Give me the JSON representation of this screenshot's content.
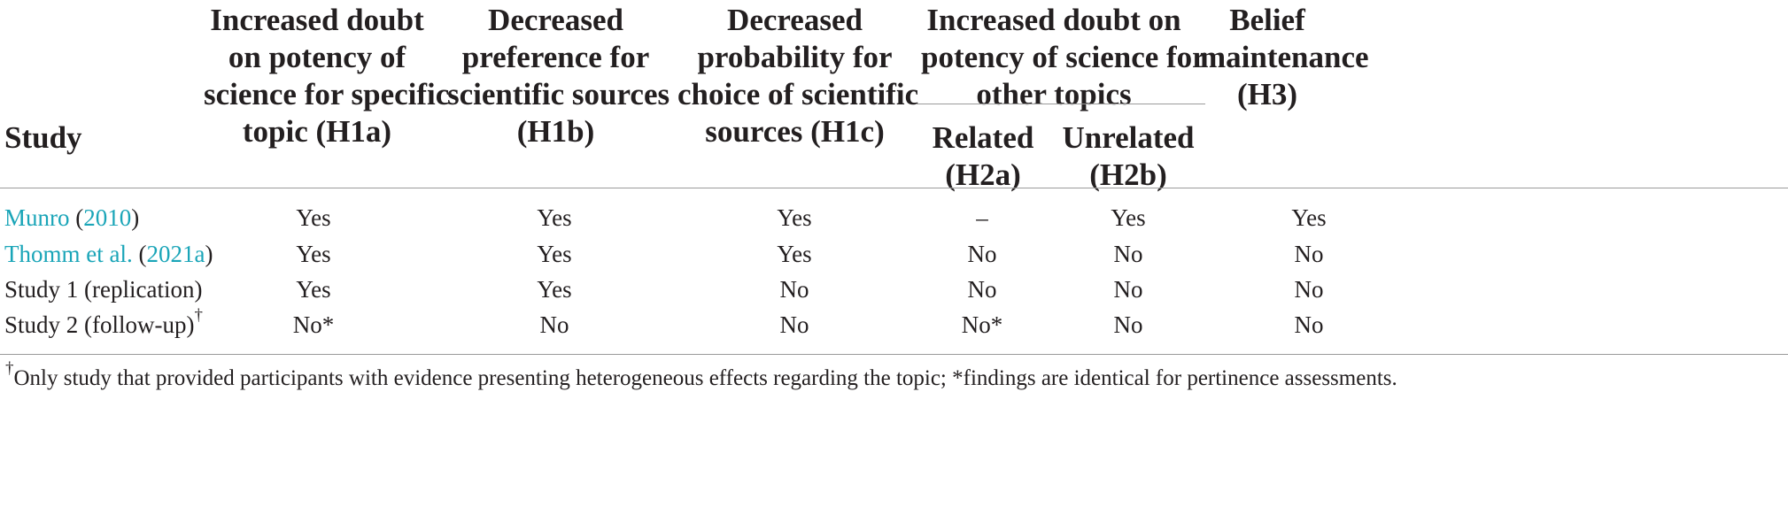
{
  "table": {
    "headers": {
      "study": "Study",
      "h1a": [
        "Increased doubt",
        "on potency of",
        "science for specific",
        "topic (H1a)"
      ],
      "h1b": [
        "Decreased",
        "preference for",
        "scientific sources",
        "(H1b)"
      ],
      "h1c": [
        "Decreased",
        "probability for",
        "choice of scientific",
        "sources (H1c)"
      ],
      "h2_group": [
        "Increased doubt on",
        "potency of science for",
        "other topics"
      ],
      "h2a": [
        "Related",
        "(H2a)"
      ],
      "h2b": [
        "Unrelated",
        "(H2b)"
      ],
      "h3": [
        "Belief",
        "maintenance",
        "(H3)"
      ]
    },
    "rows": [
      {
        "study_author": "Munro",
        "study_open": " (",
        "study_year": "2010",
        "study_close": ")",
        "h1a": "Yes",
        "h1b": "Yes",
        "h1c": "Yes",
        "h2a": "–",
        "h2b": "Yes",
        "h3": "Yes"
      },
      {
        "study_author": "Thomm et al.",
        "study_open": " (",
        "study_year": "2021a",
        "study_close": ")",
        "h1a": "Yes",
        "h1b": "Yes",
        "h1c": "Yes",
        "h2a": "No",
        "h2b": "No",
        "h3": "No"
      },
      {
        "study": "Study 1 (replication)",
        "h1a": "Yes",
        "h1b": "Yes",
        "h1c": "No",
        "h2a": "No",
        "h2b": "No",
        "h3": "No"
      },
      {
        "study": "Study 2 (follow-up)",
        "study_mark": "†",
        "h1a": "No*",
        "h1b": "No",
        "h1c": "No",
        "h2a": "No*",
        "h2b": "No",
        "h3": "No"
      }
    ],
    "footnote": {
      "mark": "†",
      "text": "Only study that provided participants with evidence presenting heterogeneous effects regarding the topic; *findings are identical for pertinence assessments."
    }
  },
  "colors": {
    "text": "#231f20",
    "link": "#1aa5b8",
    "rule": "#9a9a9a"
  }
}
